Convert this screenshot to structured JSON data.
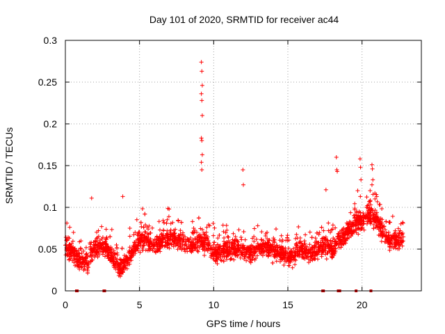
{
  "chart_data": {
    "type": "scatter",
    "title": "Day 101 of 2020, SRMTID for receiver ac44",
    "xlabel": "GPS time / hours",
    "ylabel": "SRMTID / TECUs",
    "xlim": [
      0,
      24
    ],
    "ylim": [
      0,
      0.3
    ],
    "xticks": [
      0,
      5,
      10,
      15,
      20
    ],
    "xtick_labels": [
      "0",
      "5",
      "10",
      "15",
      "20"
    ],
    "yticks": [
      0,
      0.05,
      0.1,
      0.15,
      0.2,
      0.25,
      0.3
    ],
    "ytick_labels": [
      "0",
      "0.05",
      "0.1",
      "0.15",
      "0.2",
      "0.25",
      "0.3"
    ],
    "grid": true,
    "marker": "plus",
    "color": "#ff0000",
    "x_range_of_data": [
      0.0,
      22.8
    ],
    "profile": {
      "hours": [
        0,
        0.5,
        1,
        1.5,
        2,
        2.5,
        3,
        3.5,
        4,
        4.5,
        5,
        5.5,
        6,
        6.5,
        7,
        7.5,
        8,
        8.5,
        9,
        9.5,
        10,
        10.5,
        11,
        11.5,
        12,
        12.5,
        13,
        13.5,
        14,
        14.5,
        15,
        15.5,
        16,
        16.5,
        17,
        17.5,
        18,
        18.5,
        19,
        19.5,
        20,
        20.5,
        21,
        21.5,
        22,
        22.5,
        22.8
      ],
      "typical_srmtid": [
        0.055,
        0.045,
        0.035,
        0.035,
        0.05,
        0.055,
        0.045,
        0.03,
        0.03,
        0.045,
        0.06,
        0.06,
        0.055,
        0.06,
        0.065,
        0.06,
        0.06,
        0.055,
        0.06,
        0.06,
        0.045,
        0.045,
        0.05,
        0.05,
        0.05,
        0.045,
        0.05,
        0.055,
        0.05,
        0.045,
        0.04,
        0.045,
        0.05,
        0.045,
        0.05,
        0.055,
        0.05,
        0.06,
        0.07,
        0.08,
        0.085,
        0.09,
        0.085,
        0.065,
        0.06,
        0.06,
        0.065
      ]
    },
    "peaks": [
      {
        "hour": 9.2,
        "values": [
          0.274,
          0.263,
          0.246,
          0.236,
          0.228,
          0.21,
          0.183,
          0.18,
          0.163,
          0.154,
          0.145
        ]
      },
      {
        "hour": 12.0,
        "values": [
          0.145,
          0.127
        ]
      },
      {
        "hour": 18.3,
        "values": [
          0.16,
          0.145,
          0.143
        ]
      },
      {
        "hour": 19.9,
        "values": [
          0.158,
          0.148,
          0.133
        ]
      },
      {
        "hour": 20.7,
        "values": [
          0.151,
          0.146,
          0.133,
          0.127
        ]
      },
      {
        "hour": 17.6,
        "values": [
          0.121
        ]
      },
      {
        "hour": 3.9,
        "values": [
          0.113
        ]
      },
      {
        "hour": 1.8,
        "values": [
          0.111
        ]
      }
    ],
    "zero_values_hours": [
      0.75,
      0.8,
      2.6,
      2.65,
      17.35,
      17.4,
      18.4,
      18.5,
      19.6,
      20.6
    ]
  }
}
